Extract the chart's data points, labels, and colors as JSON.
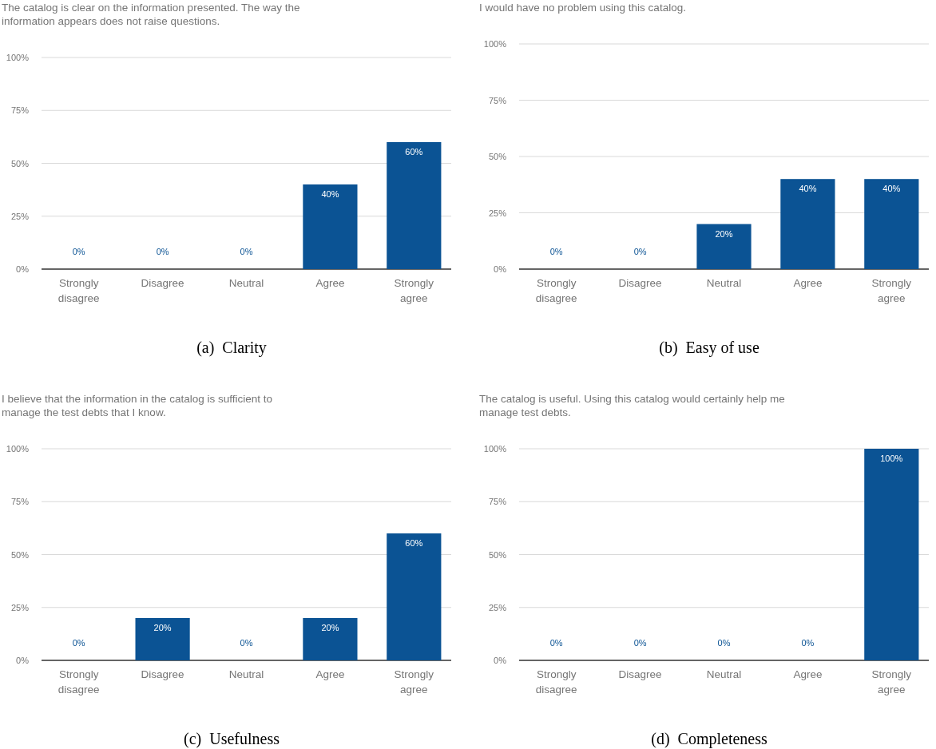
{
  "chart_data": [
    {
      "type": "bar",
      "title": "The catalog is clear on the information presented. The way the information appears does not raise questions.",
      "categories": [
        "Strongly disagree",
        "Disagree",
        "Neutral",
        "Agree",
        "Strongly agree"
      ],
      "values": [
        0,
        0,
        0,
        40,
        60
      ],
      "value_labels": [
        "0%",
        "0%",
        "0%",
        "40%",
        "60%"
      ],
      "color": "#0b5394",
      "ylim": [
        0,
        100
      ],
      "yticks": [
        {
          "value": 0,
          "label": "0%"
        },
        {
          "value": 25,
          "label": "25%"
        },
        {
          "value": 50,
          "label": "50%"
        },
        {
          "value": 75,
          "label": "75%"
        },
        {
          "value": 100,
          "label": "100%"
        }
      ],
      "grid": "y",
      "annotations": [
        "(a)  Clarity"
      ]
    },
    {
      "type": "bar",
      "title": "I would have no problem using this catalog.",
      "categories": [
        "Strongly disagree",
        "Disagree",
        "Neutral",
        "Agree",
        "Strongly agree"
      ],
      "values": [
        0,
        0,
        20,
        40,
        40
      ],
      "value_labels": [
        "0%",
        "0%",
        "20%",
        "40%",
        "40%"
      ],
      "color": "#0b5394",
      "ylim": [
        0,
        100
      ],
      "yticks": [
        {
          "value": 0,
          "label": "0%"
        },
        {
          "value": 25,
          "label": "25%"
        },
        {
          "value": 50,
          "label": "50%"
        },
        {
          "value": 75,
          "label": "75%"
        },
        {
          "value": 100,
          "label": "100%"
        }
      ],
      "grid": "y",
      "annotations": [
        "(b)  Easy of use"
      ]
    },
    {
      "type": "bar",
      "title": "I believe that the information in the catalog is sufficient to manage the test debts that I know.",
      "categories": [
        "Strongly disagree",
        "Disagree",
        "Neutral",
        "Agree",
        "Strongly agree"
      ],
      "values": [
        0,
        20,
        0,
        20,
        60
      ],
      "value_labels": [
        "0%",
        "20%",
        "0%",
        "20%",
        "60%"
      ],
      "color": "#0b5394",
      "ylim": [
        0,
        100
      ],
      "yticks": [
        {
          "value": 0,
          "label": "0%"
        },
        {
          "value": 25,
          "label": "25%"
        },
        {
          "value": 50,
          "label": "50%"
        },
        {
          "value": 75,
          "label": "75%"
        },
        {
          "value": 100,
          "label": "100%"
        }
      ],
      "grid": "y",
      "annotations": [
        "(c)  Usefulness"
      ]
    },
    {
      "type": "bar",
      "title": "The catalog is useful. Using this catalog would certainly help me manage test debts.",
      "categories": [
        "Strongly disagree",
        "Disagree",
        "Neutral",
        "Agree",
        "Strongly agree"
      ],
      "values": [
        0,
        0,
        0,
        0,
        100
      ],
      "value_labels": [
        "0%",
        "0%",
        "0%",
        "0%",
        "100%"
      ],
      "color": "#0b5394",
      "ylim": [
        0,
        100
      ],
      "yticks": [
        {
          "value": 0,
          "label": "0%"
        },
        {
          "value": 25,
          "label": "25%"
        },
        {
          "value": 50,
          "label": "50%"
        },
        {
          "value": 75,
          "label": "75%"
        },
        {
          "value": 100,
          "label": "100%"
        }
      ],
      "grid": "y",
      "annotations": [
        "(d)  Completeness"
      ]
    }
  ]
}
